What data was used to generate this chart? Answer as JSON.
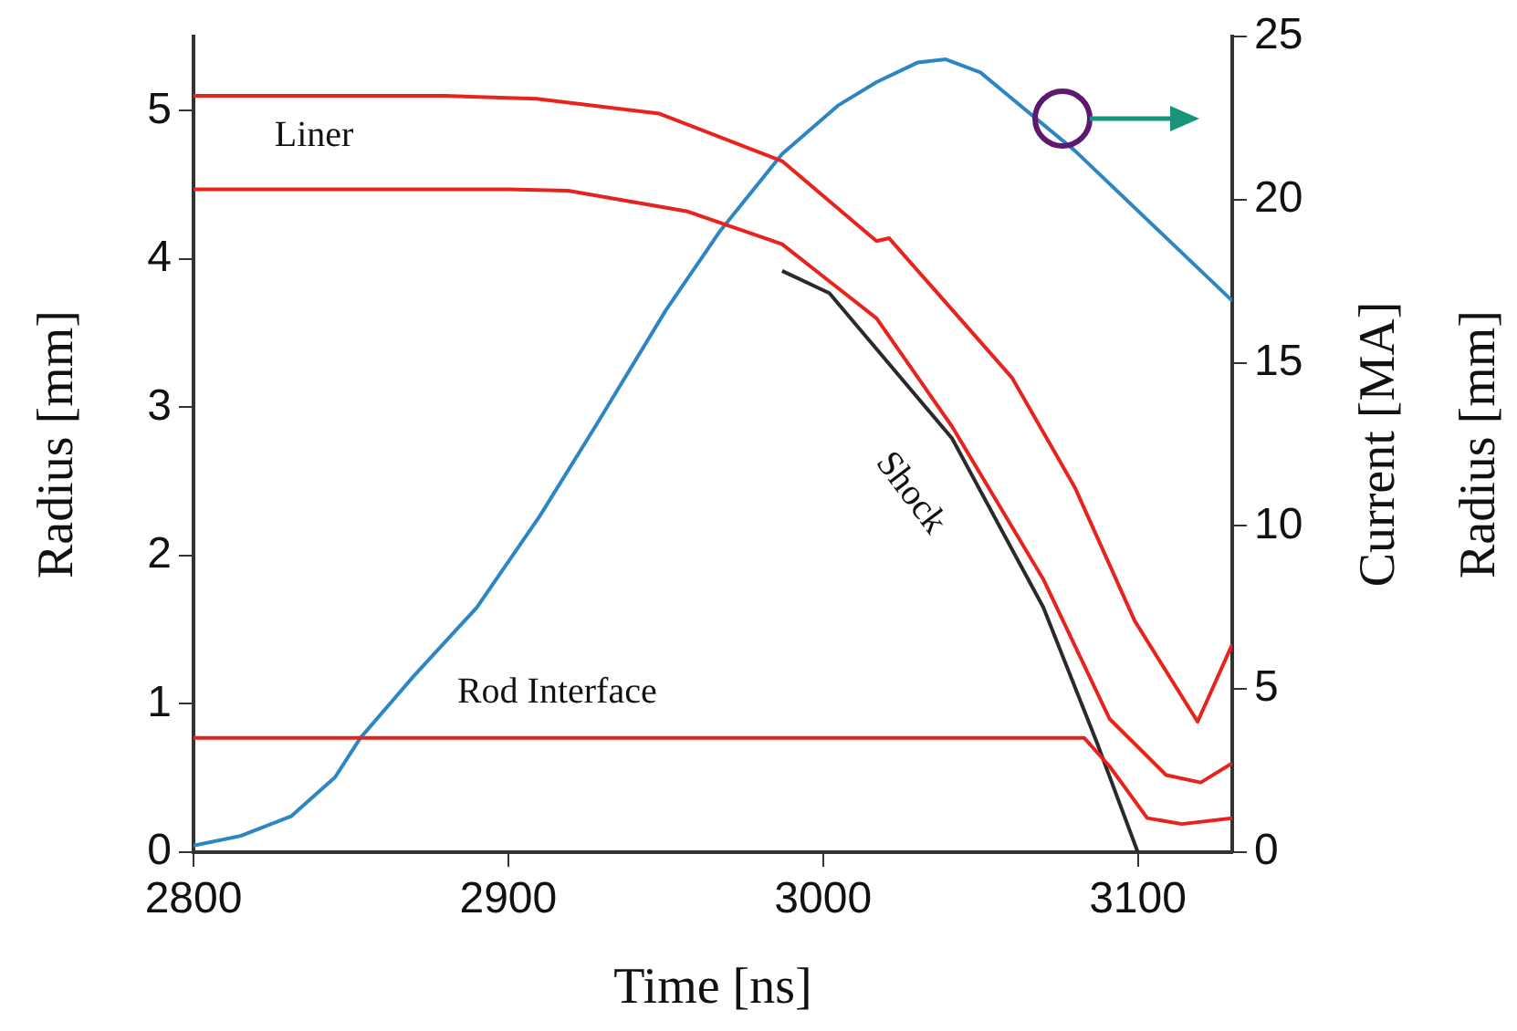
{
  "chart_data": {
    "type": "line",
    "xlabel": "Time [ns]",
    "ylabel": "Radius [mm]",
    "y2label": "Current [MA]",
    "y3label": "Radius [mm]",
    "xlim": [
      2800,
      3130
    ],
    "xticks": [
      2800,
      2900,
      3000,
      3100
    ],
    "ylim": [
      0,
      5.5
    ],
    "yticks": [
      0,
      1,
      2,
      3,
      4,
      5
    ],
    "y2lim": [
      0,
      25
    ],
    "y2ticks": [
      0,
      5,
      10,
      15,
      20,
      25
    ],
    "grid": false,
    "legend": false,
    "marker": "none",
    "line_style": "solid",
    "series": [
      {
        "color": "#e8221c",
        "x": [
          2800,
          2880,
          2909,
          2948,
          2987,
          3017,
          3021,
          3060,
          3080,
          3099,
          3119,
          3130
        ],
        "values": [
          5.1,
          5.1,
          5.08,
          4.98,
          4.66,
          4.12,
          4.14,
          3.2,
          2.46,
          1.56,
          0.88,
          1.4
        ]
      },
      {
        "color": "#e8221c",
        "x": [
          2800,
          2900,
          2919,
          2957,
          2987,
          3002,
          3017,
          3041,
          3070,
          3091,
          3109,
          3120,
          3130
        ],
        "values": [
          4.47,
          4.47,
          4.46,
          4.32,
          4.1,
          3.85,
          3.6,
          2.87,
          1.84,
          0.9,
          0.52,
          0.47,
          0.6
        ]
      },
      {
        "color": "#e8221c",
        "x": [
          2800,
          3083,
          3091,
          3103,
          3114,
          3130
        ],
        "values": [
          0.77,
          0.77,
          0.58,
          0.23,
          0.19,
          0.23
        ]
      },
      {
        "color": "#2a2a2a",
        "x": [
          2987,
          3002,
          3041,
          3070,
          3087,
          3100
        ],
        "values": [
          3.92,
          3.77,
          2.79,
          1.65,
          0.74,
          0
        ]
      },
      {
        "color": "#2d86c4",
        "axis": "y2",
        "x": [
          2800,
          2815,
          2831,
          2845,
          2853,
          2870,
          2890,
          2910,
          2928,
          2950,
          2967,
          2987,
          3005,
          3017,
          3030,
          3039,
          3050,
          3060,
          3080,
          3130
        ],
        "values": [
          0.2,
          0.5,
          1.1,
          2.3,
          3.5,
          5.4,
          7.5,
          10.3,
          13.1,
          16.6,
          19.0,
          21.4,
          22.9,
          23.6,
          24.2,
          24.3,
          23.9,
          23.1,
          21.5,
          16.9
        ]
      }
    ],
    "annotations": [
      "Liner",
      "Rod Interface",
      "Shock"
    ]
  }
}
